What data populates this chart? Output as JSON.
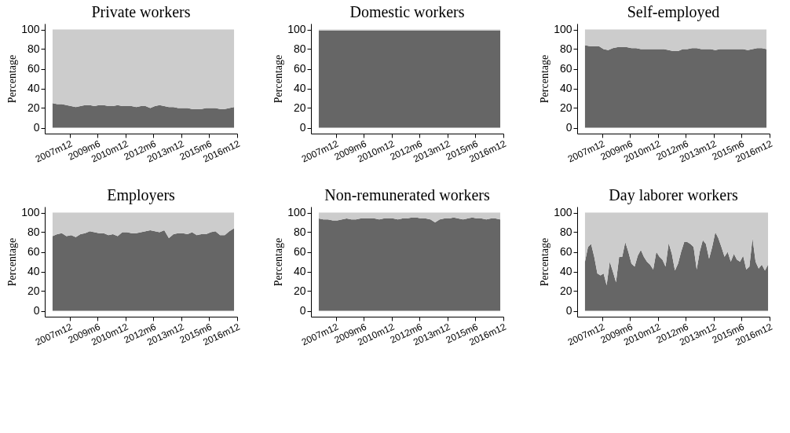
{
  "chart_data": [
    {
      "type": "area",
      "stacked": true,
      "title": "Private workers",
      "ylabel": "Percentage",
      "xlim": [
        "2006-08",
        "2016-12"
      ],
      "ylim": [
        -6,
        106
      ],
      "yticks": [
        0,
        20,
        40,
        60,
        80,
        100
      ],
      "xticks": [
        {
          "value": "2007-12",
          "label": "2007m12"
        },
        {
          "value": "2009-06",
          "label": "2009m6"
        },
        {
          "value": "2010-12",
          "label": "2010m12"
        },
        {
          "value": "2012-06",
          "label": "2012m6"
        },
        {
          "value": "2013-12",
          "label": "2013m12"
        },
        {
          "value": "2015-06",
          "label": "2015m6"
        },
        {
          "value": "2016-12",
          "label": "2016m12"
        }
      ],
      "grid": false,
      "legend": false,
      "x": [
        "2007-01",
        "2007-04",
        "2007-07",
        "2007-10",
        "2008-01",
        "2008-04",
        "2008-07",
        "2008-10",
        "2009-01",
        "2009-04",
        "2009-07",
        "2009-10",
        "2010-01",
        "2010-04",
        "2010-07",
        "2010-10",
        "2011-01",
        "2011-04",
        "2011-07",
        "2011-10",
        "2012-01",
        "2012-04",
        "2012-07",
        "2012-10",
        "2013-01",
        "2013-04",
        "2013-07",
        "2013-10",
        "2014-01",
        "2014-04",
        "2014-07",
        "2014-10",
        "2015-01",
        "2015-04",
        "2015-07",
        "2015-10",
        "2016-01",
        "2016-04",
        "2016-07",
        "2016-10"
      ],
      "series": [
        {
          "color": "#666666",
          "values": [
            25,
            24,
            24,
            23,
            22,
            21,
            22,
            23,
            23,
            22,
            23,
            23,
            22,
            22,
            23,
            22,
            22,
            22,
            21,
            22,
            22,
            20,
            22,
            23,
            22,
            21,
            21,
            20,
            20,
            20,
            19,
            19,
            19,
            20,
            20,
            20,
            19,
            19,
            20,
            21
          ]
        },
        {
          "color": "#cccccc",
          "values": [
            75,
            76,
            76,
            77,
            78,
            79,
            78,
            77,
            77,
            78,
            77,
            77,
            78,
            78,
            77,
            78,
            78,
            78,
            79,
            78,
            78,
            80,
            78,
            77,
            78,
            79,
            79,
            80,
            80,
            80,
            81,
            81,
            81,
            80,
            80,
            80,
            81,
            81,
            80,
            79
          ]
        }
      ]
    },
    {
      "type": "area",
      "stacked": true,
      "title": "Domestic workers",
      "ylabel": "Percentage",
      "xlim": [
        "2006-08",
        "2016-12"
      ],
      "ylim": [
        -6,
        106
      ],
      "yticks": [
        0,
        20,
        40,
        60,
        80,
        100
      ],
      "xticks": [
        {
          "value": "2007-12",
          "label": "2007m12"
        },
        {
          "value": "2009-06",
          "label": "2009m6"
        },
        {
          "value": "2010-12",
          "label": "2010m12"
        },
        {
          "value": "2012-06",
          "label": "2012m6"
        },
        {
          "value": "2013-12",
          "label": "2013m12"
        },
        {
          "value": "2015-06",
          "label": "2015m6"
        },
        {
          "value": "2016-12",
          "label": "2016m12"
        }
      ],
      "grid": false,
      "legend": false,
      "x": [
        "2007-01",
        "2007-04",
        "2007-07",
        "2007-10",
        "2008-01",
        "2008-04",
        "2008-07",
        "2008-10",
        "2009-01",
        "2009-04",
        "2009-07",
        "2009-10",
        "2010-01",
        "2010-04",
        "2010-07",
        "2010-10",
        "2011-01",
        "2011-04",
        "2011-07",
        "2011-10",
        "2012-01",
        "2012-04",
        "2012-07",
        "2012-10",
        "2013-01",
        "2013-04",
        "2013-07",
        "2013-10",
        "2014-01",
        "2014-04",
        "2014-07",
        "2014-10",
        "2015-01",
        "2015-04",
        "2015-07",
        "2015-10",
        "2016-01",
        "2016-04",
        "2016-07",
        "2016-10"
      ],
      "series": [
        {
          "color": "#666666",
          "values": [
            99,
            99,
            99,
            99,
            99,
            99,
            99,
            99,
            99,
            99,
            99,
            99,
            99,
            99,
            99,
            99,
            99,
            99,
            99,
            99,
            99,
            99,
            99,
            99,
            99,
            99,
            99,
            99,
            99,
            99,
            99,
            99,
            99,
            99,
            99,
            99,
            99,
            99,
            99,
            99
          ]
        },
        {
          "color": "#cccccc",
          "values": [
            1,
            1,
            1,
            1,
            1,
            1,
            1,
            1,
            1,
            1,
            1,
            1,
            1,
            1,
            1,
            1,
            1,
            1,
            1,
            1,
            1,
            1,
            1,
            1,
            1,
            1,
            1,
            1,
            1,
            1,
            1,
            1,
            1,
            1,
            1,
            1,
            1,
            1,
            1,
            1
          ]
        }
      ]
    },
    {
      "type": "area",
      "stacked": true,
      "title": "Self-employed",
      "ylabel": "Percentage",
      "xlim": [
        "2006-08",
        "2016-12"
      ],
      "ylim": [
        -6,
        106
      ],
      "yticks": [
        0,
        20,
        40,
        60,
        80,
        100
      ],
      "xticks": [
        {
          "value": "2007-12",
          "label": "2007m12"
        },
        {
          "value": "2009-06",
          "label": "2009m6"
        },
        {
          "value": "2010-12",
          "label": "2010m12"
        },
        {
          "value": "2012-06",
          "label": "2012m6"
        },
        {
          "value": "2013-12",
          "label": "2013m12"
        },
        {
          "value": "2015-06",
          "label": "2015m6"
        },
        {
          "value": "2016-12",
          "label": "2016m12"
        }
      ],
      "grid": false,
      "legend": false,
      "x": [
        "2007-01",
        "2007-04",
        "2007-07",
        "2007-10",
        "2008-01",
        "2008-04",
        "2008-07",
        "2008-10",
        "2009-01",
        "2009-04",
        "2009-07",
        "2009-10",
        "2010-01",
        "2010-04",
        "2010-07",
        "2010-10",
        "2011-01",
        "2011-04",
        "2011-07",
        "2011-10",
        "2012-01",
        "2012-04",
        "2012-07",
        "2012-10",
        "2013-01",
        "2013-04",
        "2013-07",
        "2013-10",
        "2014-01",
        "2014-04",
        "2014-07",
        "2014-10",
        "2015-01",
        "2015-04",
        "2015-07",
        "2015-10",
        "2016-01",
        "2016-04",
        "2016-07",
        "2016-10"
      ],
      "series": [
        {
          "color": "#666666",
          "values": [
            84,
            83,
            83,
            83,
            80,
            79,
            81,
            82,
            82,
            82,
            81,
            81,
            80,
            80,
            80,
            80,
            80,
            80,
            79,
            78,
            78,
            80,
            80,
            81,
            81,
            80,
            80,
            80,
            79,
            80,
            80,
            80,
            80,
            80,
            80,
            79,
            80,
            81,
            81,
            80
          ]
        },
        {
          "color": "#cccccc",
          "values": [
            16,
            17,
            17,
            17,
            20,
            21,
            19,
            18,
            18,
            18,
            19,
            19,
            20,
            20,
            20,
            20,
            20,
            20,
            21,
            22,
            22,
            20,
            20,
            19,
            19,
            20,
            20,
            20,
            21,
            20,
            20,
            20,
            20,
            20,
            20,
            21,
            20,
            19,
            19,
            20
          ]
        }
      ]
    },
    {
      "type": "area",
      "stacked": true,
      "title": "Employers",
      "ylabel": "Percentage",
      "xlim": [
        "2006-08",
        "2016-12"
      ],
      "ylim": [
        -6,
        106
      ],
      "yticks": [
        0,
        20,
        40,
        60,
        80,
        100
      ],
      "xticks": [
        {
          "value": "2007-12",
          "label": "2007m12"
        },
        {
          "value": "2009-06",
          "label": "2009m6"
        },
        {
          "value": "2010-12",
          "label": "2010m12"
        },
        {
          "value": "2012-06",
          "label": "2012m6"
        },
        {
          "value": "2013-12",
          "label": "2013m12"
        },
        {
          "value": "2015-06",
          "label": "2015m6"
        },
        {
          "value": "2016-12",
          "label": "2016m12"
        }
      ],
      "grid": false,
      "legend": false,
      "x": [
        "2007-01",
        "2007-04",
        "2007-07",
        "2007-10",
        "2008-01",
        "2008-04",
        "2008-07",
        "2008-10",
        "2009-01",
        "2009-04",
        "2009-07",
        "2009-10",
        "2010-01",
        "2010-04",
        "2010-07",
        "2010-10",
        "2011-01",
        "2011-04",
        "2011-07",
        "2011-10",
        "2012-01",
        "2012-04",
        "2012-07",
        "2012-10",
        "2013-01",
        "2013-04",
        "2013-07",
        "2013-10",
        "2014-01",
        "2014-04",
        "2014-07",
        "2014-10",
        "2015-01",
        "2015-04",
        "2015-07",
        "2015-10",
        "2016-01",
        "2016-04",
        "2016-07",
        "2016-10"
      ],
      "series": [
        {
          "color": "#666666",
          "values": [
            76,
            78,
            79,
            76,
            77,
            75,
            78,
            79,
            81,
            80,
            79,
            79,
            77,
            78,
            76,
            80,
            80,
            79,
            79,
            80,
            81,
            82,
            81,
            80,
            82,
            74,
            78,
            79,
            79,
            78,
            80,
            77,
            78,
            78,
            80,
            81,
            77,
            77,
            81,
            84
          ]
        },
        {
          "color": "#cccccc",
          "values": [
            24,
            22,
            21,
            24,
            23,
            25,
            22,
            21,
            19,
            20,
            21,
            21,
            23,
            22,
            24,
            20,
            20,
            21,
            21,
            20,
            19,
            18,
            19,
            20,
            18,
            26,
            22,
            21,
            21,
            22,
            20,
            23,
            22,
            22,
            20,
            19,
            23,
            23,
            19,
            16
          ]
        }
      ]
    },
    {
      "type": "area",
      "stacked": true,
      "title": "Non-remunerated workers",
      "ylabel": "Percentage",
      "xlim": [
        "2006-08",
        "2016-12"
      ],
      "ylim": [
        -6,
        106
      ],
      "yticks": [
        0,
        20,
        40,
        60,
        80,
        100
      ],
      "xticks": [
        {
          "value": "2007-12",
          "label": "2007m12"
        },
        {
          "value": "2009-06",
          "label": "2009m6"
        },
        {
          "value": "2010-12",
          "label": "2010m12"
        },
        {
          "value": "2012-06",
          "label": "2012m6"
        },
        {
          "value": "2013-12",
          "label": "2013m12"
        },
        {
          "value": "2015-06",
          "label": "2015m6"
        },
        {
          "value": "2016-12",
          "label": "2016m12"
        }
      ],
      "grid": false,
      "legend": false,
      "x": [
        "2007-01",
        "2007-04",
        "2007-07",
        "2007-10",
        "2008-01",
        "2008-04",
        "2008-07",
        "2008-10",
        "2009-01",
        "2009-04",
        "2009-07",
        "2009-10",
        "2010-01",
        "2010-04",
        "2010-07",
        "2010-10",
        "2011-01",
        "2011-04",
        "2011-07",
        "2011-10",
        "2012-01",
        "2012-04",
        "2012-07",
        "2012-10",
        "2013-01",
        "2013-04",
        "2013-07",
        "2013-10",
        "2014-01",
        "2014-04",
        "2014-07",
        "2014-10",
        "2015-01",
        "2015-04",
        "2015-07",
        "2015-10",
        "2016-01",
        "2016-04",
        "2016-07",
        "2016-10"
      ],
      "series": [
        {
          "color": "#666666",
          "values": [
            94,
            93,
            93,
            92,
            92,
            93,
            94,
            93,
            93,
            94,
            94,
            94,
            94,
            93,
            94,
            94,
            94,
            93,
            94,
            94,
            95,
            95,
            94,
            94,
            93,
            90,
            93,
            94,
            94,
            95,
            94,
            93,
            94,
            95,
            94,
            94,
            93,
            94,
            94,
            93
          ]
        },
        {
          "color": "#cccccc",
          "values": [
            6,
            7,
            7,
            8,
            8,
            7,
            6,
            7,
            7,
            6,
            6,
            6,
            6,
            7,
            6,
            6,
            6,
            7,
            6,
            6,
            5,
            5,
            6,
            6,
            7,
            10,
            7,
            6,
            6,
            5,
            6,
            7,
            6,
            5,
            6,
            6,
            7,
            6,
            6,
            7
          ]
        }
      ]
    },
    {
      "type": "area",
      "stacked": true,
      "title": "Day laborer workers",
      "ylabel": "Percentage",
      "xlim": [
        "2006-08",
        "2016-12"
      ],
      "ylim": [
        -6,
        106
      ],
      "yticks": [
        0,
        20,
        40,
        60,
        80,
        100
      ],
      "xticks": [
        {
          "value": "2007-12",
          "label": "2007m12"
        },
        {
          "value": "2009-06",
          "label": "2009m6"
        },
        {
          "value": "2010-12",
          "label": "2010m12"
        },
        {
          "value": "2012-06",
          "label": "2012m6"
        },
        {
          "value": "2013-12",
          "label": "2013m12"
        },
        {
          "value": "2015-06",
          "label": "2015m6"
        },
        {
          "value": "2016-12",
          "label": "2016m12"
        }
      ],
      "grid": false,
      "legend": false,
      "x": [
        "2007-01",
        "2007-03",
        "2007-05",
        "2007-07",
        "2007-09",
        "2007-11",
        "2008-01",
        "2008-03",
        "2008-05",
        "2008-07",
        "2008-09",
        "2008-11",
        "2009-01",
        "2009-03",
        "2009-05",
        "2009-07",
        "2009-09",
        "2009-11",
        "2010-01",
        "2010-03",
        "2010-05",
        "2010-07",
        "2010-09",
        "2010-11",
        "2011-01",
        "2011-03",
        "2011-05",
        "2011-07",
        "2011-09",
        "2011-11",
        "2012-01",
        "2012-03",
        "2012-05",
        "2012-07",
        "2012-09",
        "2012-11",
        "2013-01",
        "2013-03",
        "2013-05",
        "2013-07",
        "2013-09",
        "2013-11",
        "2014-01",
        "2014-03",
        "2014-05",
        "2014-07",
        "2014-09",
        "2014-11",
        "2015-01",
        "2015-03",
        "2015-05",
        "2015-07",
        "2015-09",
        "2015-11",
        "2016-01",
        "2016-03",
        "2016-05",
        "2016-07",
        "2016-09",
        "2016-11"
      ],
      "series": [
        {
          "color": "#666666",
          "values": [
            50,
            65,
            68,
            55,
            38,
            36,
            38,
            26,
            50,
            40,
            29,
            55,
            55,
            70,
            60,
            48,
            45,
            56,
            62,
            55,
            50,
            47,
            42,
            60,
            55,
            52,
            45,
            69,
            58,
            41,
            48,
            60,
            70,
            70,
            68,
            65,
            42,
            60,
            72,
            68,
            53,
            65,
            80,
            74,
            65,
            55,
            60,
            50,
            58,
            52,
            50,
            56,
            42,
            45,
            74,
            50,
            43,
            47,
            41,
            47
          ]
        },
        {
          "color": "#cccccc",
          "values": [
            50,
            35,
            32,
            45,
            62,
            64,
            62,
            74,
            50,
            60,
            71,
            45,
            45,
            30,
            40,
            52,
            55,
            44,
            38,
            45,
            50,
            53,
            58,
            40,
            45,
            48,
            55,
            31,
            42,
            59,
            52,
            40,
            30,
            30,
            32,
            35,
            58,
            40,
            28,
            32,
            47,
            35,
            20,
            26,
            35,
            45,
            40,
            50,
            42,
            48,
            50,
            44,
            58,
            55,
            26,
            50,
            57,
            53,
            59,
            53
          ]
        }
      ]
    }
  ]
}
